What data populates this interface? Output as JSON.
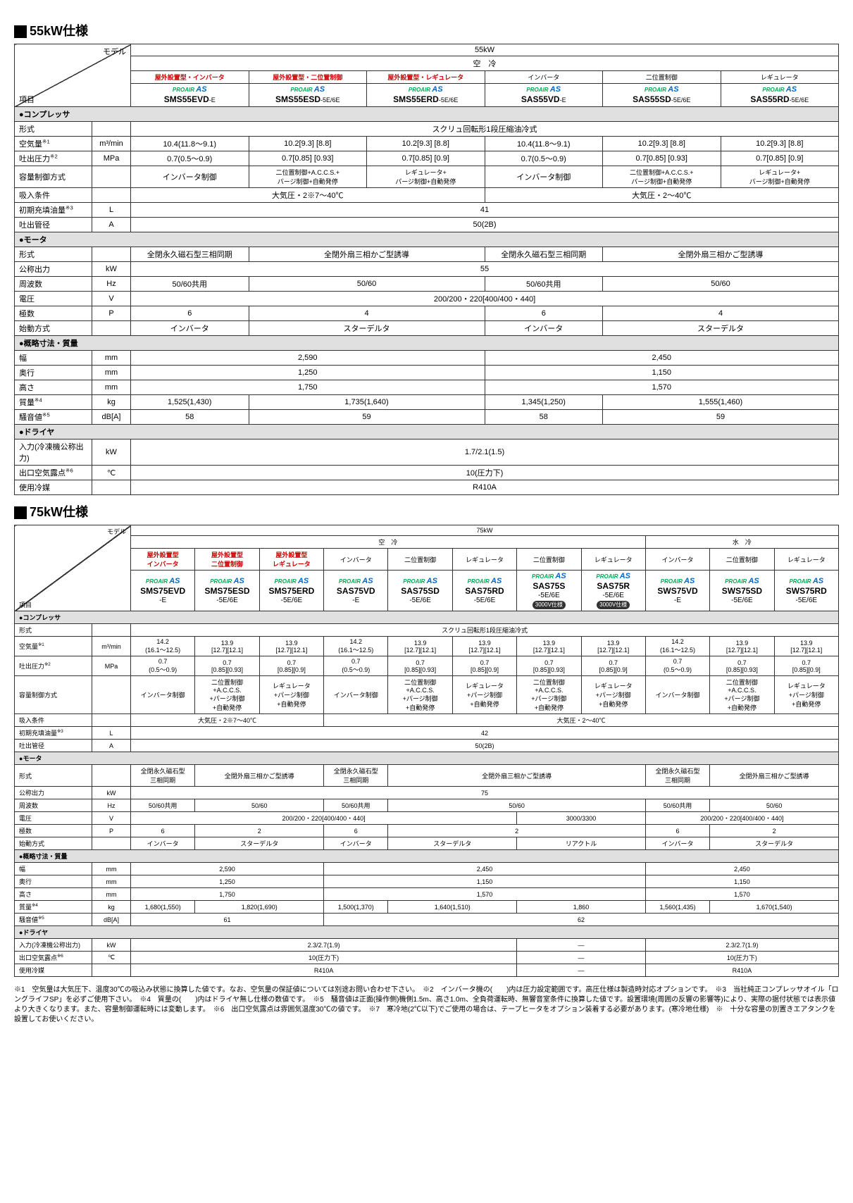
{
  "sec55_title": "55kW仕様",
  "sec75_title": "75kW仕様",
  "diag_top": "モデル",
  "diag_bot": "項目",
  "power55": "55kW",
  "power75": "75kW",
  "cooling_air": "空　冷",
  "cooling_water": "水　冷",
  "h55": {
    "t1": "屋外設置型・インバータ",
    "t2": "屋外設置型・二位置制御",
    "t3": "屋外設置型・レギュレータ",
    "t4": "インバータ",
    "t5": "二位置制御",
    "t6": "レギュレータ",
    "m1": "SMS55EVD",
    "s1": "-E",
    "m2": "SMS55ESD",
    "s2": "-5E/6E",
    "m3": "SMS55ERD",
    "s3": "-5E/6E",
    "m4": "SAS55VD",
    "s4": "-E",
    "m5": "SAS55SD",
    "s5": "-5E/6E",
    "m6": "SAS55RD",
    "s6": "-5E/6E"
  },
  "logo_proair": "PROAIR",
  "logo_as": "AS",
  "cat_comp": "コンプレッサ",
  "cat_motor": "モータ",
  "cat_dim": "概略寸法・質量",
  "cat_dryer": "ドライヤ",
  "r": {
    "type": "形式",
    "air": "空気量",
    "air_sup": "※1",
    "press": "吐出圧力",
    "press_sup": "※2",
    "cap": "容量制御方式",
    "suction": "吸入条件",
    "oil": "初期充填油量",
    "oil_sup": "※3",
    "pipe": "吐出管径",
    "output": "公称出力",
    "freq": "周波数",
    "volt": "電圧",
    "poles": "極数",
    "start": "始動方式",
    "width": "幅",
    "depth": "奥行",
    "height": "高さ",
    "mass": "質量",
    "mass_sup": "※4",
    "noise": "騒音値",
    "noise_sup": "※5",
    "dryer_in": "入力(冷凍機公称出力)",
    "dew": "出口空気露点",
    "dew_sup": "※6",
    "refrig": "使用冷媒"
  },
  "u": {
    "air": "m³/min",
    "press": "MPa",
    "oil": "L",
    "pipe": "A",
    "output": "kW",
    "freq": "Hz",
    "volt": "V",
    "poles": "P",
    "width": "mm",
    "depth": "mm",
    "height": "mm",
    "mass": "kg",
    "noise": "dB[A]",
    "dryer_in": "kW",
    "dew": "℃"
  },
  "v55": {
    "type": "スクリュ回転形1段圧縮油冷式",
    "air1": "10.4(11.8～9.1)",
    "air2": "10.2[9.3] [8.8]",
    "air3": "10.2[9.3] [8.8]",
    "air4": "10.4(11.8～9.1)",
    "air5": "10.2[9.3] [8.8]",
    "air6": "10.2[9.3] [8.8]",
    "press1": "0.7(0.5～0.9)",
    "press2": "0.7[0.85] [0.93]",
    "press3": "0.7[0.85] [0.9]",
    "press4": "0.7(0.5～0.9)",
    "press5": "0.7[0.85] [0.93]",
    "press6": "0.7[0.85] [0.9]",
    "cap1": "インバータ制御",
    "cap2": "二位置制御+A.C.C.S.+\nパージ制御+自動発停",
    "cap3": "レギュレータ+\nパージ制御+自動発停",
    "cap4": "インバータ制御",
    "cap5": "二位置制御+A.C.C.S.+\nパージ制御+自動発停",
    "cap6": "レギュレータ+\nパージ制御+自動発停",
    "suction1": "大気圧・2※7～40℃",
    "suction2": "大気圧・2～40℃",
    "oil": "41",
    "pipe": "50(2B)",
    "mtype1": "全閉永久磁石型三相同期",
    "mtype2": "全閉外扇三相かご型誘導",
    "mtype3": "全閉永久磁石型三相同期",
    "mtype4": "全閉外扇三相かご型誘導",
    "output": "55",
    "freq1": "50/60共用",
    "freq2": "50/60",
    "freq3": "50/60共用",
    "freq4": "50/60",
    "volt": "200/200・220[400/400・440]",
    "poles1": "6",
    "poles2": "4",
    "poles3": "6",
    "poles4": "4",
    "start1": "インバータ",
    "start2": "スターデルタ",
    "start3": "インバータ",
    "start4": "スターデルタ",
    "width1": "2,590",
    "width2": "2,450",
    "depth1": "1,250",
    "depth2": "1,150",
    "height1": "1,750",
    "height2": "1,570",
    "mass1": "1,525(1,430)",
    "mass2": "1,735(1,640)",
    "mass3": "1,345(1,250)",
    "mass4": "1,555(1,460)",
    "noise1": "58",
    "noise2": "59",
    "noise3": "58",
    "noise4": "59",
    "dryer_in": "1.7/2.1(1.5)",
    "dew": "10(圧力下)",
    "refrig": "R410A"
  },
  "h75": {
    "t1": "屋外設置型\nインバータ",
    "t2": "屋外設置型\n二位置制御",
    "t3": "屋外設置型\nレギュレータ",
    "t4": "インバータ",
    "t5": "二位置制御",
    "t6": "レギュレータ",
    "t7": "二位置制御",
    "t8": "レギュレータ",
    "t9": "インバータ",
    "t10": "二位置制御",
    "t11": "レギュレータ",
    "m1": "SMS75EVD",
    "s1": "-E",
    "m2": "SMS75ESD",
    "s2": "-5E/6E",
    "m3": "SMS75ERD",
    "s3": "-5E/6E",
    "m4": "SAS75VD",
    "s4": "-E",
    "m5": "SAS75SD",
    "s5": "-5E/6E",
    "m6": "SAS75RD",
    "s6": "-5E/6E",
    "m7": "SAS75S",
    "s7": "-5E/6E",
    "m8": "SAS75R",
    "s8": "-5E/6E",
    "m9": "SWS75VD",
    "s9": "-E",
    "m10": "SWS75SD",
    "s10": "-5E/6E",
    "m11": "SWS75RD",
    "s11": "-5E/6E",
    "badge": "3000V仕様"
  },
  "v75": {
    "type": "スクリュ回転形1段圧縮油冷式",
    "air1": "14.2\n(16.1～12.5)",
    "air2": "13.9\n[12.7][12.1]",
    "air3": "13.9\n[12.7][12.1]",
    "air4": "14.2\n(16.1～12.5)",
    "air5": "13.9\n[12.7][12.1]",
    "air6": "13.9\n[12.7][12.1]",
    "air7": "13.9\n[12.7][12.1]",
    "air8": "13.9\n[12.7][12.1]",
    "air9": "14.2\n(16.1～12.5)",
    "air10": "13.9\n[12.7][12.1]",
    "air11": "13.9\n[12.7][12.1]",
    "press1": "0.7\n(0.5～0.9)",
    "press2": "0.7\n[0.85][0.93]",
    "press3": "0.7\n[0.85][0.9]",
    "press4": "0.7\n(0.5～0.9)",
    "press5": "0.7\n[0.85][0.93]",
    "press6": "0.7\n[0.85][0.9]",
    "press7": "0.7\n[0.85][0.93]",
    "press8": "0.7\n[0.85][0.9]",
    "press9": "0.7\n(0.5～0.9)",
    "press10": "0.7\n[0.85][0.93]",
    "press11": "0.7\n[0.85][0.9]",
    "cap1": "インバータ制御",
    "cap2": "二位置制御\n+A.C.C.S.\n+パージ制御\n+自動発停",
    "cap3": "レギュレータ\n+パージ制御\n+自動発停",
    "cap4": "インバータ制御",
    "cap5": "二位置制御\n+A.C.C.S.\n+パージ制御\n+自動発停",
    "cap6": "レギュレータ\n+パージ制御\n+自動発停",
    "cap7": "二位置制御\n+A.C.C.S.\n+パージ制御\n+自動発停",
    "cap8": "レギュレータ\n+パージ制御\n+自動発停",
    "cap9": "インバータ制御",
    "cap10": "二位置制御\n+A.C.C.S.\n+パージ制御\n+自動発停",
    "cap11": "レギュレータ\n+パージ制御\n+自動発停",
    "suction1": "大気圧・2※7～40℃",
    "suction2": "大気圧・2～40℃",
    "oil": "42",
    "pipe": "50(2B)",
    "mtype1": "全閉永久磁石型\n三相同期",
    "mtype2": "全閉外扇三相かご型誘導",
    "mtype3": "全閉永久磁石型\n三相同期",
    "mtype4": "全閉外扇三相かご型誘導",
    "mtype5": "全閉永久磁石型\n三相同期",
    "mtype6": "全閉外扇三相かご型誘導",
    "output": "75",
    "freq1": "50/60共用",
    "freq2": "50/60",
    "freq3": "50/60共用",
    "freq4": "50/60",
    "freq5": "50/60共用",
    "freq6": "50/60",
    "volt1": "200/200・220[400/400・440]",
    "volt2": "3000/3300",
    "poles1": "6",
    "poles2": "2",
    "poles3": "6",
    "poles4": "2",
    "poles5": "6",
    "poles6": "2",
    "start1": "インバータ",
    "start2": "スターデルタ",
    "start3": "インバータ",
    "start4": "スターデルタ",
    "start5": "リアクトル",
    "start6": "インバータ",
    "start7": "スターデルタ",
    "width1": "2,590",
    "width2": "2,450",
    "width3": "2,450",
    "depth1": "1,250",
    "depth2": "1,150",
    "depth3": "1,150",
    "height1": "1,750",
    "height2": "1,570",
    "height3": "1,570",
    "mass1": "1,680(1,550)",
    "mass2": "1,820(1,690)",
    "mass3": "1,500(1,370)",
    "mass4": "1,640(1,510)",
    "mass5": "1,860",
    "mass6": "1,560(1,435)",
    "mass7": "1,670(1,540)",
    "noise1": "61",
    "noise2": "62",
    "dryer_in1": "2.3/2.7(1.9)",
    "dryer_in2": "—",
    "dryer_in3": "2.3/2.7(1.9)",
    "dew1": "10(圧力下)",
    "dew2": "—",
    "dew3": "10(圧力下)",
    "refrig1": "R410A",
    "refrig2": "—",
    "refrig3": "R410A"
  },
  "notes": "※1　空気量は大気圧下、温度30℃の吸込み状態に換算した値です。なお、空気量の保証値については別途お問い合わせ下さい。　※2　インバータ機の(　　)内は圧力設定範囲です。高圧仕様は製造時対応オプションです。　※3　当社純正コンプレッサオイル「ロングライフSP」を必ずご使用下さい。　※4　質量の(　　)内はドライヤ無し仕様の数値です。　※5　騒音値は正面(操作側)機側1.5m、高さ1.0m、全負荷運転時、無響音室条件に換算した値です。設置環境(周囲の反響の影響等)により、実際の据付状態では表示値より大きくなります。また、容量制御運転時には変動します。　※6　出口空気露点は雰囲気温度30℃の値です。　※7　寒冷地(2℃以下)でご使用の場合は、テープヒータをオプション装着する必要があります。(寒冷地仕様)　※　十分な容量の別置きエアタンクを設置してお使いください。"
}
